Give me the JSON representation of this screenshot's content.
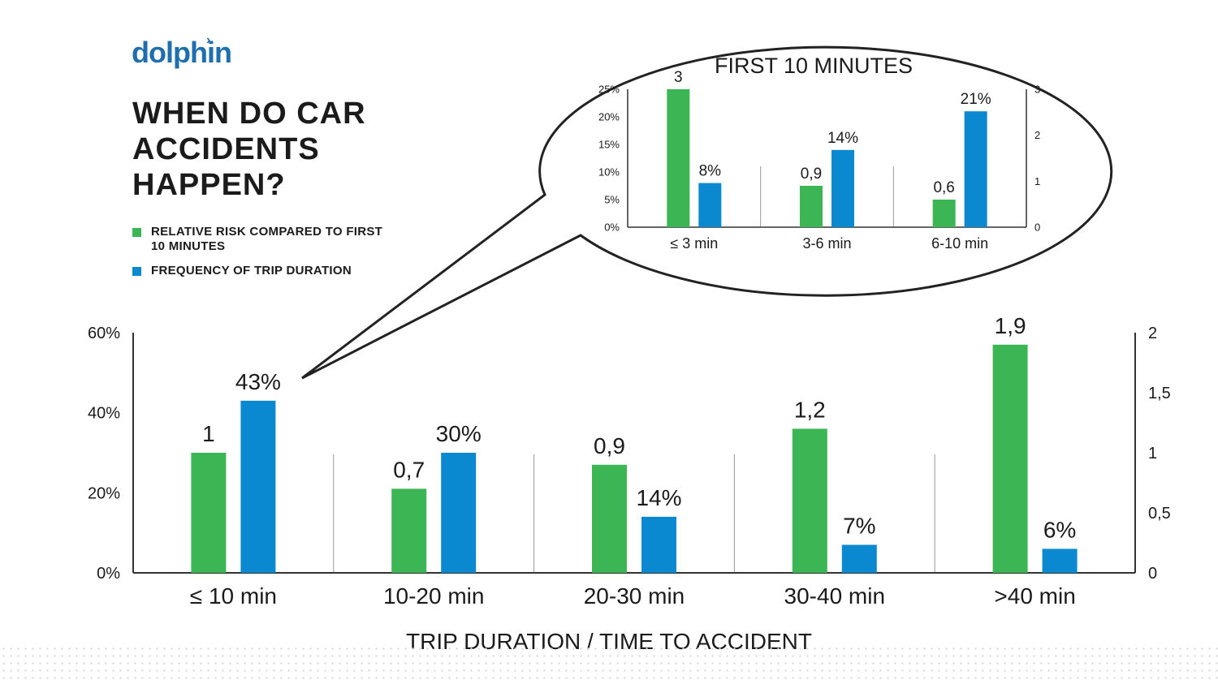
{
  "logo": {
    "text": "dolphin"
  },
  "title": "WHEN DO CAR ACCIDENTS HAPPEN?",
  "legend": [
    {
      "label": "RELATIVE RISK COMPARED TO FIRST 10 MINUTES",
      "color": "#3cb554"
    },
    {
      "label": "FREQUENCY OF TRIP DURATION",
      "color": "#0a89d0"
    }
  ],
  "colors": {
    "risk": "#3cb554",
    "frequency": "#0a89d0",
    "axis": "#333333"
  },
  "chart_data": [
    {
      "type": "bar",
      "title": "",
      "xlabel": "TRIP DURATION / TIME TO ACCIDENT",
      "categories": [
        "≤ 10 min",
        "10-20 min",
        "20-30 min",
        "30-40 min",
        ">40 min"
      ],
      "series": [
        {
          "name": "RELATIVE RISK COMPARED TO FIRST 10 MINUTES",
          "axis": "right",
          "values": [
            1,
            0.7,
            0.9,
            1.2,
            1.9
          ],
          "labels": [
            "1",
            "0,7",
            "0,9",
            "1,2",
            "1,9"
          ]
        },
        {
          "name": "FREQUENCY OF TRIP DURATION",
          "axis": "left",
          "values": [
            43,
            30,
            14,
            7,
            6
          ],
          "labels": [
            "43%",
            "30%",
            "14%",
            "7%",
            "6%"
          ]
        }
      ],
      "ylim_left": [
        0,
        60
      ],
      "left_ticks": [
        "0%",
        "20%",
        "40%",
        "60%"
      ],
      "ylim_right": [
        0,
        2
      ],
      "right_ticks": [
        "0",
        "0,5",
        "1",
        "1,5",
        "2"
      ]
    },
    {
      "type": "bar",
      "title": "FIRST 10 MINUTES",
      "categories": [
        "≤ 3 min",
        "3-6 min",
        "6-10 min"
      ],
      "series": [
        {
          "name": "RELATIVE RISK COMPARED TO FIRST 10 MINUTES",
          "axis": "right",
          "values": [
            3,
            0.9,
            0.6
          ],
          "labels": [
            "3",
            "0,9",
            "0,6"
          ]
        },
        {
          "name": "FREQUENCY OF TRIP DURATION",
          "axis": "left",
          "values": [
            8,
            14,
            21
          ],
          "labels": [
            "8%",
            "14%",
            "21%"
          ]
        }
      ],
      "ylim_left": [
        0,
        25
      ],
      "left_ticks": [
        "0%",
        "5%",
        "10%",
        "15%",
        "20%",
        "25%"
      ],
      "ylim_right": [
        0,
        3
      ],
      "right_ticks": [
        "0",
        "1",
        "2",
        "3"
      ]
    }
  ]
}
